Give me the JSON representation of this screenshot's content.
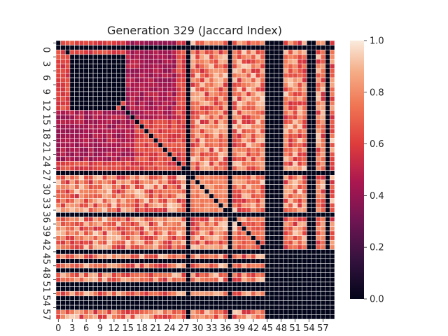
{
  "chart_data": {
    "type": "heatmap",
    "title": "Generation 329 (Jaccard Index)",
    "xlabel": "",
    "ylabel": "",
    "n": 60,
    "x_ticks": [
      "0",
      "3",
      "6",
      "9",
      "12",
      "15",
      "18",
      "21",
      "24",
      "27",
      "30",
      "33",
      "36",
      "39",
      "42",
      "45",
      "48",
      "51",
      "54",
      "57"
    ],
    "y_ticks": [
      "0",
      "3",
      "6",
      "9",
      "12",
      "15",
      "18",
      "21",
      "24",
      "27",
      "30",
      "33",
      "36",
      "39",
      "42",
      "45",
      "48",
      "51",
      "54",
      "57"
    ],
    "colorbar": {
      "min": 0.0,
      "max": 1.0,
      "ticks": [
        "0.0",
        "0.2",
        "0.4",
        "0.6",
        "0.8",
        "1.0"
      ]
    },
    "colormap": "rocket",
    "grid_line_color": "#ffffff",
    "values_note_blocks": [
      {
        "rows": [
          0,
          28
        ],
        "cols": [
          0,
          28
        ],
        "value": 0.62
      },
      {
        "rows": [
          3,
          13
        ],
        "cols": [
          3,
          17
        ],
        "value": 0.0
      },
      {
        "rows": [
          15,
          26
        ],
        "cols": [
          0,
          17
        ],
        "value": 0.45
      },
      {
        "rows": [
          29,
          37
        ],
        "cols": [
          29,
          37
        ],
        "value": 0.78
      },
      {
        "rows": [
          39,
          46
        ],
        "cols": [
          39,
          46
        ],
        "value": 0.7
      },
      {
        "rows": [
          45,
          60
        ],
        "cols": [
          45,
          60
        ],
        "value": 0.0
      }
    ],
    "zero_rows": [
      1,
      28,
      37,
      45,
      47,
      49,
      52,
      53,
      55,
      56,
      57
    ],
    "zero_cols": [
      28,
      37,
      45,
      46,
      47,
      48,
      54,
      55,
      58
    ]
  }
}
